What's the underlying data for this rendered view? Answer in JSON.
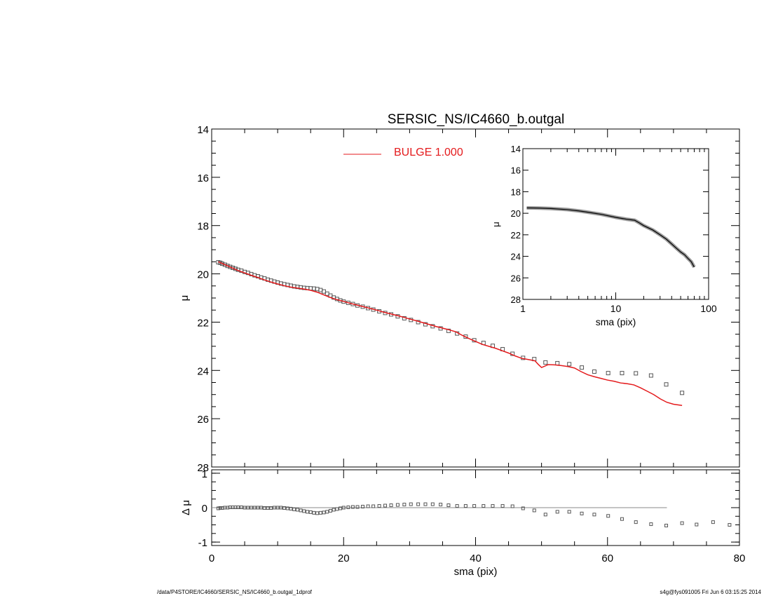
{
  "footer": {
    "path": "/data/P4STORE/IC4660/SERSIC_NS/IC4660_b.outgal_1dprof",
    "stamp": "s4g@fys091005  Fri Jun  6 03:15:25 2014"
  },
  "colors": {
    "model": "#e41a1c",
    "data": "#555555",
    "axes": "#000000",
    "zero_line": "#888888"
  },
  "chart_data": [
    {
      "id": "main",
      "type": "scatter",
      "title": "SERSIC_NS/IC4660_b.outgal",
      "xlabel": "",
      "ylabel": "μ",
      "xlim": [
        0,
        80
      ],
      "ylim": [
        28,
        14
      ],
      "xticks": [],
      "yticks": [
        14,
        16,
        18,
        20,
        22,
        24,
        26,
        28
      ],
      "legend": {
        "placement": "top-center",
        "entries": [
          {
            "label": "BULGE  1.000",
            "color": "#e41a1c"
          }
        ]
      },
      "series": [
        {
          "name": "data",
          "style": "open-square",
          "points": [
            [
              1.0,
              19.52
            ],
            [
              1.3,
              19.54
            ],
            [
              1.6,
              19.58
            ],
            [
              2.0,
              19.62
            ],
            [
              2.4,
              19.67
            ],
            [
              2.8,
              19.71
            ],
            [
              3.2,
              19.75
            ],
            [
              3.6,
              19.79
            ],
            [
              4.0,
              19.83
            ],
            [
              4.5,
              19.87
            ],
            [
              5.0,
              19.92
            ],
            [
              5.5,
              19.96
            ],
            [
              6.0,
              20.01
            ],
            [
              6.5,
              20.06
            ],
            [
              7.0,
              20.1
            ],
            [
              7.5,
              20.15
            ],
            [
              8.0,
              20.19
            ],
            [
              8.5,
              20.24
            ],
            [
              9.0,
              20.28
            ],
            [
              9.5,
              20.32
            ],
            [
              10.0,
              20.36
            ],
            [
              10.5,
              20.4
            ],
            [
              11.0,
              20.43
            ],
            [
              11.5,
              20.46
            ],
            [
              12.0,
              20.49
            ],
            [
              12.5,
              20.52
            ],
            [
              13.0,
              20.54
            ],
            [
              13.5,
              20.56
            ],
            [
              14.0,
              20.58
            ],
            [
              14.5,
              20.59
            ],
            [
              15.0,
              20.6
            ],
            [
              15.5,
              20.61
            ],
            [
              16.0,
              20.63
            ],
            [
              16.5,
              20.67
            ],
            [
              17.0,
              20.73
            ],
            [
              17.5,
              20.82
            ],
            [
              18.0,
              20.9
            ],
            [
              18.5,
              20.98
            ],
            [
              19.0,
              21.04
            ],
            [
              19.5,
              21.1
            ],
            [
              20.0,
              21.15
            ],
            [
              20.7,
              21.2
            ],
            [
              21.4,
              21.25
            ],
            [
              22.1,
              21.31
            ],
            [
              22.9,
              21.36
            ],
            [
              23.7,
              21.42
            ],
            [
              24.5,
              21.48
            ],
            [
              25.4,
              21.55
            ],
            [
              26.3,
              21.62
            ],
            [
              27.2,
              21.68
            ],
            [
              28.2,
              21.76
            ],
            [
              29.2,
              21.84
            ],
            [
              30.2,
              21.91
            ],
            [
              31.3,
              22.0
            ],
            [
              32.4,
              22.09
            ],
            [
              33.5,
              22.17
            ],
            [
              34.7,
              22.26
            ],
            [
              35.9,
              22.36
            ],
            [
              37.2,
              22.47
            ],
            [
              38.5,
              22.6
            ],
            [
              39.8,
              22.75
            ],
            [
              41.2,
              22.86
            ],
            [
              42.6,
              22.98
            ],
            [
              44.1,
              23.12
            ],
            [
              45.6,
              23.31
            ],
            [
              47.2,
              23.48
            ],
            [
              48.9,
              23.53
            ],
            [
              50.6,
              23.67
            ],
            [
              52.4,
              23.7
            ],
            [
              54.2,
              23.74
            ],
            [
              56.1,
              23.88
            ],
            [
              58.0,
              24.05
            ],
            [
              60.1,
              24.11
            ],
            [
              62.2,
              24.11
            ],
            [
              64.3,
              24.12
            ],
            [
              66.6,
              24.21
            ],
            [
              68.9,
              24.58
            ],
            [
              71.3,
              24.93
            ]
          ]
        },
        {
          "name": "BULGE  1.000",
          "style": "line",
          "points": [
            [
              1.0,
              19.5
            ],
            [
              2.0,
              19.62
            ],
            [
              3.0,
              19.74
            ],
            [
              4.0,
              19.86
            ],
            [
              5.0,
              19.96
            ],
            [
              6.0,
              20.06
            ],
            [
              7.0,
              20.15
            ],
            [
              8.0,
              20.25
            ],
            [
              9.0,
              20.34
            ],
            [
              10.0,
              20.42
            ],
            [
              11.0,
              20.49
            ],
            [
              12.0,
              20.55
            ],
            [
              13.0,
              20.59
            ],
            [
              14.0,
              20.63
            ],
            [
              15.0,
              20.68
            ],
            [
              16.0,
              20.76
            ],
            [
              17.0,
              20.87
            ],
            [
              18.0,
              20.98
            ],
            [
              19.0,
              21.07
            ],
            [
              20.0,
              21.14
            ],
            [
              21.0,
              21.22
            ],
            [
              22.0,
              21.29
            ],
            [
              23.0,
              21.36
            ],
            [
              24.0,
              21.43
            ],
            [
              25.0,
              21.5
            ],
            [
              26.0,
              21.58
            ],
            [
              27.0,
              21.65
            ],
            [
              28.0,
              21.72
            ],
            [
              29.0,
              21.79
            ],
            [
              30.0,
              21.87
            ],
            [
              31.0,
              21.94
            ],
            [
              32.0,
              22.02
            ],
            [
              33.0,
              22.1
            ],
            [
              34.0,
              22.18
            ],
            [
              35.0,
              22.25
            ],
            [
              36.0,
              22.32
            ],
            [
              37.0,
              22.4
            ],
            [
              38.0,
              22.55
            ],
            [
              39.0,
              22.68
            ],
            [
              40.0,
              22.8
            ],
            [
              41.0,
              22.92
            ],
            [
              42.0,
              23.0
            ],
            [
              43.0,
              23.08
            ],
            [
              44.0,
              23.18
            ],
            [
              45.0,
              23.28
            ],
            [
              46.0,
              23.4
            ],
            [
              47.0,
              23.5
            ],
            [
              48.0,
              23.55
            ],
            [
              49.0,
              23.6
            ],
            [
              49.5,
              23.75
            ],
            [
              50.0,
              23.88
            ],
            [
              51.0,
              23.76
            ],
            [
              52.0,
              23.77
            ],
            [
              53.0,
              23.8
            ],
            [
              54.0,
              23.84
            ],
            [
              55.0,
              23.9
            ],
            [
              56.0,
              24.05
            ],
            [
              57.0,
              24.18
            ],
            [
              58.0,
              24.26
            ],
            [
              59.0,
              24.33
            ],
            [
              60.0,
              24.4
            ],
            [
              61.0,
              24.45
            ],
            [
              62.0,
              24.52
            ],
            [
              63.0,
              24.55
            ],
            [
              64.0,
              24.6
            ],
            [
              65.0,
              24.72
            ],
            [
              66.0,
              24.86
            ],
            [
              67.0,
              25.0
            ],
            [
              68.0,
              25.18
            ],
            [
              69.0,
              25.32
            ],
            [
              70.0,
              25.4
            ],
            [
              71.3,
              25.45
            ]
          ]
        }
      ]
    },
    {
      "id": "inset",
      "type": "line",
      "xlabel": "sma (pix)",
      "ylabel": "μ",
      "xscale": "log",
      "xlim": [
        1,
        100
      ],
      "ylim": [
        28,
        14
      ],
      "xticks": [
        1,
        10,
        100
      ],
      "xtick_labels": [
        "1",
        "10",
        "100"
      ],
      "yticks": [
        14,
        16,
        18,
        20,
        22,
        24,
        26,
        28
      ],
      "series": [
        {
          "name": "profile",
          "style": "thick-line",
          "points": [
            [
              1.1,
              19.5
            ],
            [
              1.5,
              19.52
            ],
            [
              2.0,
              19.56
            ],
            [
              3.0,
              19.66
            ],
            [
              4.0,
              19.78
            ],
            [
              5.0,
              19.9
            ],
            [
              7.0,
              20.1
            ],
            [
              10.0,
              20.38
            ],
            [
              13.0,
              20.55
            ],
            [
              16.0,
              20.65
            ],
            [
              18.0,
              20.9
            ],
            [
              20.0,
              21.15
            ],
            [
              25.0,
              21.55
            ],
            [
              30.0,
              22.0
            ],
            [
              35.0,
              22.4
            ],
            [
              40.0,
              22.85
            ],
            [
              45.0,
              23.25
            ],
            [
              50.0,
              23.6
            ],
            [
              55.0,
              23.85
            ],
            [
              60.0,
              24.2
            ],
            [
              65.0,
              24.5
            ],
            [
              70.0,
              25.0
            ]
          ]
        }
      ]
    },
    {
      "id": "residual",
      "type": "scatter",
      "xlabel": "sma (pix)",
      "ylabel": "Δ μ",
      "xlim": [
        0,
        80
      ],
      "ylim": [
        -1.1,
        1.1
      ],
      "xticks": [
        0,
        20,
        40,
        60,
        80
      ],
      "yticks": [
        -1,
        0,
        1
      ],
      "zero_line": {
        "y": 0,
        "x_end": 69
      },
      "series": [
        {
          "name": "residual",
          "style": "open-square",
          "points": [
            [
              1.0,
              -0.02
            ],
            [
              1.3,
              -0.01
            ],
            [
              1.6,
              -0.01
            ],
            [
              2.0,
              0.0
            ],
            [
              2.4,
              0.0
            ],
            [
              2.8,
              0.01
            ],
            [
              3.2,
              0.01
            ],
            [
              3.6,
              0.01
            ],
            [
              4.0,
              0.01
            ],
            [
              4.5,
              0.01
            ],
            [
              5.0,
              0.0
            ],
            [
              5.5,
              0.0
            ],
            [
              6.0,
              0.0
            ],
            [
              6.5,
              0.0
            ],
            [
              7.0,
              0.0
            ],
            [
              7.5,
              0.0
            ],
            [
              8.0,
              -0.01
            ],
            [
              8.5,
              -0.01
            ],
            [
              9.0,
              -0.01
            ],
            [
              9.5,
              0.0
            ],
            [
              10.0,
              0.0
            ],
            [
              10.5,
              0.0
            ],
            [
              11.0,
              -0.01
            ],
            [
              11.5,
              -0.02
            ],
            [
              12.0,
              -0.03
            ],
            [
              12.5,
              -0.05
            ],
            [
              13.0,
              -0.06
            ],
            [
              13.5,
              -0.08
            ],
            [
              14.0,
              -0.1
            ],
            [
              14.5,
              -0.12
            ],
            [
              15.0,
              -0.13
            ],
            [
              15.5,
              -0.15
            ],
            [
              16.0,
              -0.16
            ],
            [
              16.5,
              -0.15
            ],
            [
              17.0,
              -0.14
            ],
            [
              17.5,
              -0.12
            ],
            [
              18.0,
              -0.09
            ],
            [
              18.5,
              -0.06
            ],
            [
              19.0,
              -0.04
            ],
            [
              19.5,
              -0.02
            ],
            [
              20.0,
              0.0
            ],
            [
              20.7,
              0.01
            ],
            [
              21.4,
              0.02
            ],
            [
              22.1,
              0.02
            ],
            [
              22.9,
              0.03
            ],
            [
              23.7,
              0.04
            ],
            [
              24.5,
              0.04
            ],
            [
              25.4,
              0.05
            ],
            [
              26.3,
              0.06
            ],
            [
              27.2,
              0.07
            ],
            [
              28.2,
              0.08
            ],
            [
              29.2,
              0.09
            ],
            [
              30.2,
              0.1
            ],
            [
              31.3,
              0.1
            ],
            [
              32.4,
              0.1
            ],
            [
              33.5,
              0.1
            ],
            [
              34.7,
              0.09
            ],
            [
              35.9,
              0.07
            ],
            [
              37.2,
              0.05
            ],
            [
              38.5,
              0.05
            ],
            [
              39.8,
              0.05
            ],
            [
              41.2,
              0.05
            ],
            [
              42.6,
              0.05
            ],
            [
              44.1,
              0.05
            ],
            [
              45.6,
              0.04
            ],
            [
              47.2,
              -0.02
            ],
            [
              48.9,
              -0.08
            ],
            [
              50.6,
              -0.2
            ],
            [
              52.4,
              -0.12
            ],
            [
              54.2,
              -0.12
            ],
            [
              56.1,
              -0.17
            ],
            [
              58.0,
              -0.2
            ],
            [
              60.1,
              -0.24
            ],
            [
              62.2,
              -0.33
            ],
            [
              64.3,
              -0.42
            ],
            [
              66.6,
              -0.48
            ],
            [
              68.9,
              -0.52
            ],
            [
              71.3,
              -0.45
            ],
            [
              73.5,
              -0.49
            ],
            [
              76.0,
              -0.42
            ],
            [
              78.5,
              -0.5
            ]
          ]
        }
      ]
    }
  ]
}
